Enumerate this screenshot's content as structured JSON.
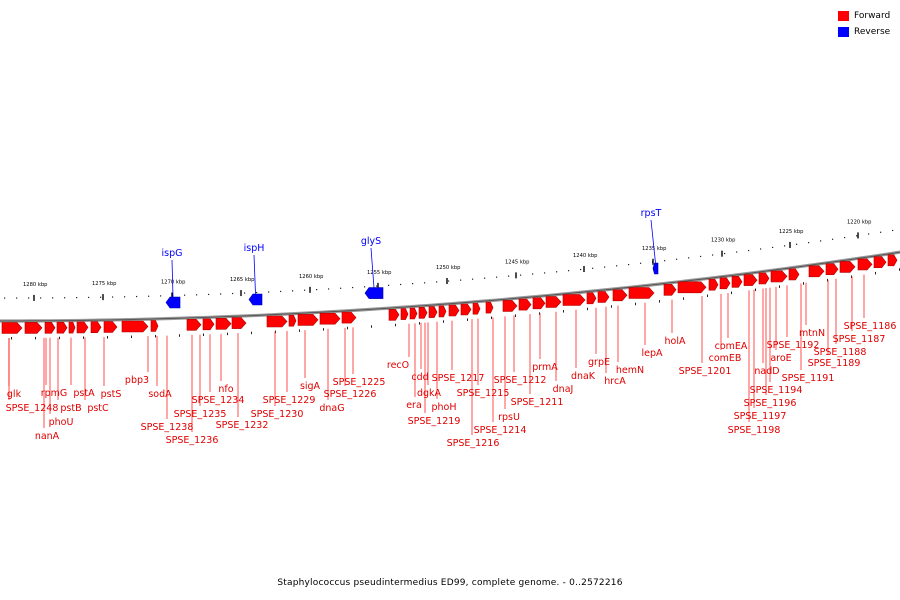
{
  "legend": {
    "forward_label": "Forward",
    "reverse_label": "Reverse",
    "forward_color": "#ff0000",
    "reverse_color": "#0000ff"
  },
  "caption": "Staphylococcus pseudintermedius ED99, complete genome. - 0..2572216",
  "ticks": [
    "1280 kbp",
    "1275 kbp",
    "1270 kbp",
    "1265 kbp",
    "1260 kbp",
    "1255 kbp",
    "1250 kbp",
    "1245 kbp",
    "1240 kbp",
    "1235 kbp",
    "1230 kbp",
    "1225 kbp",
    "1220 kbp"
  ],
  "reverse_genes": [
    "ispG",
    "ispH",
    "glyS",
    "rpsT"
  ],
  "forward_genes": [
    "glk",
    "SPSE_1248",
    "rpmG",
    "nanA",
    "phoU",
    "pstB",
    "pstA",
    "pstC",
    "pstS",
    "pbp3",
    "sodA",
    "SPSE_1238",
    "SPSE_1236",
    "SPSE_1235",
    "SPSE_1234",
    "nfo",
    "SPSE_1232",
    "SPSE_1230",
    "SPSE_1229",
    "sigA",
    "dnaG",
    "SPSE_1226",
    "SPSE_1225",
    "recO",
    "era",
    "cdd",
    "dgkA",
    "phoH",
    "SPSE_1219",
    "SPSE_1217",
    "SPSE_1216",
    "SPSE_1215",
    "SPSE_1214",
    "rpsU",
    "SPSE_1212",
    "SPSE_1211",
    "prmA",
    "dnaJ",
    "dnaK",
    "grpE",
    "hrcA",
    "hemN",
    "lepA",
    "holA",
    "SPSE_1201",
    "comEB",
    "comEA",
    "SPSE_1198",
    "SPSE_1197",
    "nadD",
    "SPSE_1196",
    "aroE",
    "SPSE_1194",
    "SPSE_1192",
    "SPSE_1191",
    "mtnN",
    "SPSE_1189",
    "SPSE_1188",
    "SPSE_1187",
    "SPSE_1186"
  ]
}
